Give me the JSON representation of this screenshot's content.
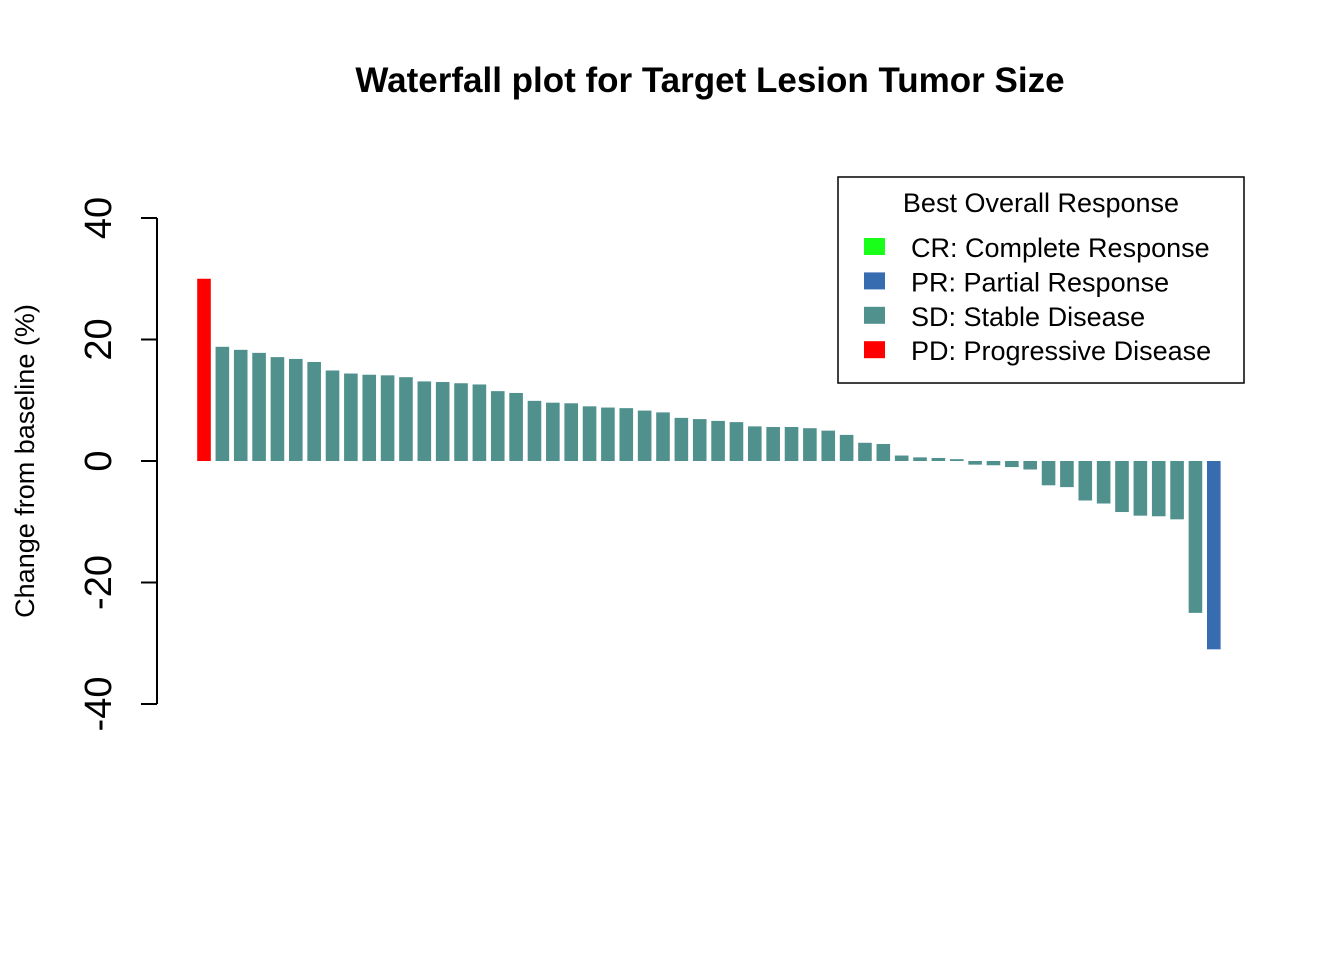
{
  "chart_data": {
    "type": "bar",
    "title": "Waterfall plot for Target Lesion Tumor Size",
    "xlabel": "",
    "ylabel": "Change from baseline (%)",
    "ylim": [
      -40,
      40
    ],
    "yticks": [
      -40,
      -20,
      0,
      20,
      40
    ],
    "ytick_labels": [
      "-40",
      "-20",
      "0",
      "20",
      "40"
    ],
    "grid": false,
    "legend": {
      "title": "Best Overall Response",
      "position": "top-right",
      "entries": [
        {
          "code": "CR",
          "label": "CR: Complete Response",
          "color": "#1AFF1A"
        },
        {
          "code": "PR",
          "label": "PR: Partial Response",
          "color": "#386CB0"
        },
        {
          "code": "SD",
          "label": "SD: Stable Disease",
          "color": "#50918E"
        },
        {
          "code": "PD",
          "label": "PD: Progressive Disease",
          "color": "#FF0000"
        }
      ]
    },
    "values": [
      30,
      18.8,
      18.3,
      17.8,
      17.1,
      16.8,
      16.3,
      14.9,
      14.4,
      14.2,
      14.1,
      13.8,
      13.1,
      13.0,
      12.8,
      12.6,
      11.5,
      11.2,
      9.9,
      9.6,
      9.5,
      9.0,
      8.8,
      8.7,
      8.3,
      8.0,
      7.1,
      6.9,
      6.6,
      6.4,
      5.7,
      5.6,
      5.6,
      5.4,
      5.0,
      4.3,
      3.0,
      2.8,
      0.9,
      0.6,
      0.5,
      0.3,
      -0.6,
      -0.7,
      -1.0,
      -1.4,
      -4.0,
      -4.3,
      -6.5,
      -7.0,
      -8.4,
      -9.0,
      -9.1,
      -9.6,
      -25.0,
      -31.0
    ],
    "groups": [
      "PD",
      "SD",
      "SD",
      "SD",
      "SD",
      "SD",
      "SD",
      "SD",
      "SD",
      "SD",
      "SD",
      "SD",
      "SD",
      "SD",
      "SD",
      "SD",
      "SD",
      "SD",
      "SD",
      "SD",
      "SD",
      "SD",
      "SD",
      "SD",
      "SD",
      "SD",
      "SD",
      "SD",
      "SD",
      "SD",
      "SD",
      "SD",
      "SD",
      "SD",
      "SD",
      "SD",
      "SD",
      "SD",
      "SD",
      "SD",
      "SD",
      "SD",
      "SD",
      "SD",
      "SD",
      "SD",
      "SD",
      "SD",
      "SD",
      "SD",
      "SD",
      "SD",
      "SD",
      "SD",
      "SD",
      "PR"
    ]
  }
}
